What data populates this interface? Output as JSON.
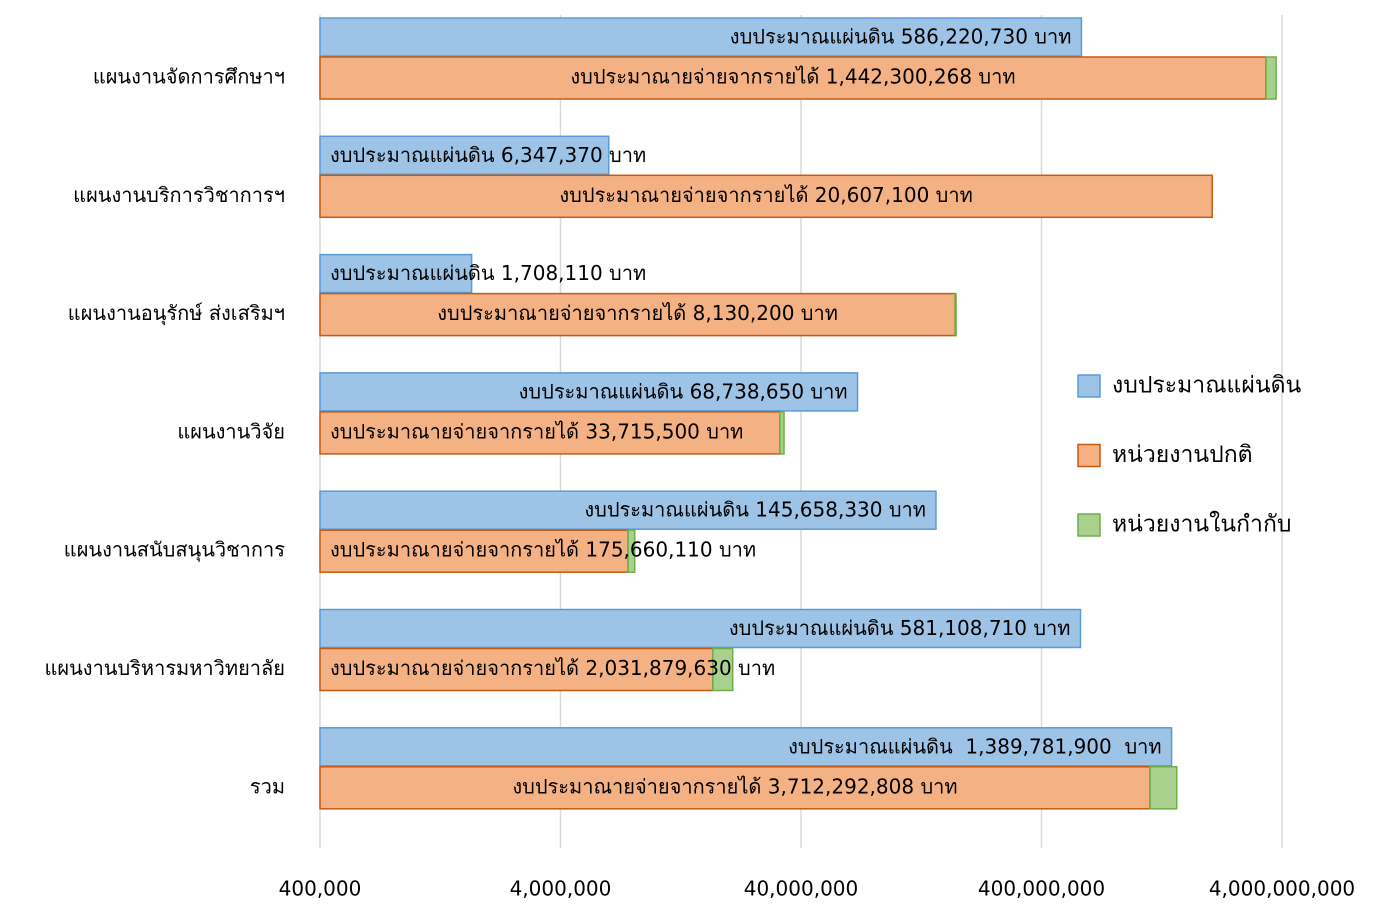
{
  "chart_data": {
    "type": "bar",
    "orientation": "horizontal",
    "log_scale": true,
    "grid": true,
    "legend": "right",
    "categories": [
      "แผนงานจัดการศึกษาฯ",
      "แผนงานบริการวิชาการฯ",
      "แผนงานอนุรักษ์ ส่งเสริมฯ",
      "แผนงานวิจัย",
      "แผนงานสนับสนุนวิชาการ",
      "แผนงานบริหารมหาวิทยาลัย",
      "รวม"
    ],
    "series": [
      {
        "name": "งบประมาณแผ่นดิน",
        "color": "#9dc3e6",
        "stroke": "#5b9bd5",
        "values": [
          586220730,
          6347370,
          1708110,
          68738650,
          145658330,
          581108710,
          1389781900
        ],
        "value_labels": [
          "งบประมาณแผ่นดิน 586,220,730 บาท",
          "งบประมาณแผ่นดิน 6,347,370 บาท",
          "งบประมาณแผ่นดิน 1,708,110 บาท",
          "งบประมาณแผ่นดิน 68,738,650 บาท",
          "งบประมาณแผ่นดิน 145,658,330 บาท",
          "งบประมาณแผ่นดิน 581,108,710 บาท",
          "งบประมาณแผ่นดิน  1,389,781,900  บาท"
        ]
      },
      {
        "name": "หน่วยงานปกติ",
        "color": "#f4b183",
        "stroke": "#c55a11",
        "values": [
          3430000000,
          2050000000,
          175000000,
          32700000,
          7640000,
          17200000,
          1130000000
        ]
      },
      {
        "name": "หน่วยงานในกำกับ",
        "color": "#a9d18e",
        "stroke": "#70ad47",
        "values": [
          350000000,
          0,
          1500000,
          1300000,
          500000,
          3600000,
          330000000
        ]
      }
    ],
    "annotations": [
      "งบประมาณายจ่ายจากรายได้ 1,442,300,268 บาท",
      "งบประมาณายจ่ายจากรายได้ 20,607,100 บาท",
      "งบประมาณายจ่ายจากรายได้ 8,130,200 บาท",
      "งบประมาณายจ่ายจากรายได้ 33,715,500 บาท",
      "งบประมาณายจ่ายจากรายได้ 175,660,110 บาท",
      "งบประมาณายจ่ายจากรายได้ 2,031,879,630 บาท",
      "งบประมาณายจ่ายจากรายได้ 3,712,292,808 บาท"
    ],
    "xlim": [
      400000,
      4000000000
    ],
    "xticks": [
      {
        "value": 400000,
        "label": "400,000"
      },
      {
        "value": 4000000,
        "label": "4,000,000"
      },
      {
        "value": 40000000,
        "label": "40,000,000"
      },
      {
        "value": 400000000,
        "label": "400,000,000"
      },
      {
        "value": 4000000000,
        "label": "4,000,000,000"
      }
    ]
  }
}
